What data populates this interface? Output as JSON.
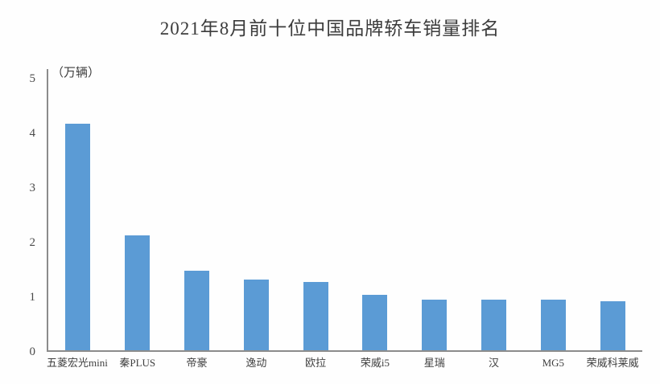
{
  "title": "2021年8月前十位中国品牌轿车销量排名",
  "axis": {
    "unit_label": "（万辆）",
    "y_ticks": [
      "0",
      "1",
      "2",
      "3",
      "4",
      "5"
    ]
  },
  "chart_data": {
    "type": "bar",
    "title": "2021年8月前十位中国品牌轿车销量排名",
    "categories": [
      "五菱宏光mini",
      "秦PLUS",
      "帝豪",
      "逸动",
      "欧拉",
      "荣威i5",
      "星瑞",
      "汉",
      "MG5",
      "荣威科莱威"
    ],
    "values": [
      4.15,
      2.1,
      1.45,
      1.3,
      1.25,
      1.02,
      0.93,
      0.92,
      0.92,
      0.9
    ],
    "xlabel": "",
    "ylabel": "（万辆）",
    "ylim": [
      0,
      5
    ],
    "y_tick_step": 1,
    "grid": false,
    "legend": "none",
    "bar_color": "#5B9BD5",
    "axis_color": "#8C8C8C",
    "text_color": "#3C3C3C"
  }
}
